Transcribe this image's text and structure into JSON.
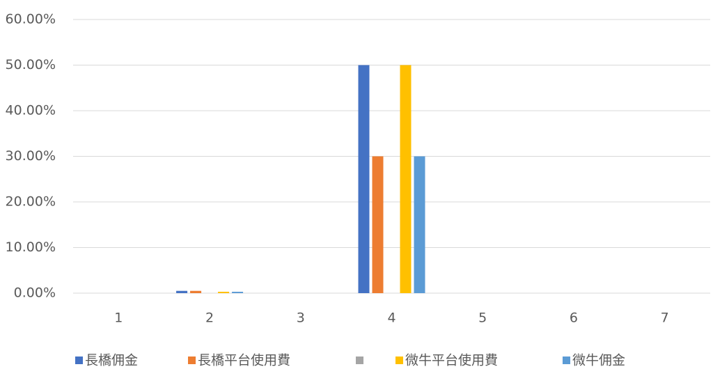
{
  "chart_data": {
    "type": "bar",
    "categories": [
      "1",
      "2",
      "3",
      "4",
      "5",
      "6",
      "7"
    ],
    "series": [
      {
        "name": "長橋佣金",
        "color": "#4472c4",
        "values": [
          0,
          0.5,
          0,
          50,
          0,
          0,
          0
        ]
      },
      {
        "name": "長橋平台使用費",
        "color": "#ed7d31",
        "values": [
          0,
          0.5,
          0,
          30,
          0,
          0,
          0
        ]
      },
      {
        "name": null,
        "color": "#a5a5a5",
        "values": [
          0,
          0,
          0,
          0,
          0,
          0,
          0
        ]
      },
      {
        "name": "微牛平台使用費",
        "color": "#ffc000",
        "values": [
          0,
          0.3,
          0,
          50,
          0,
          0,
          0
        ]
      },
      {
        "name": "微牛佣金",
        "color": "#5b9bd5",
        "values": [
          0,
          0.3,
          0,
          30,
          0,
          0,
          0
        ]
      }
    ],
    "ylim": [
      0,
      60
    ],
    "yticks": [
      {
        "value": 0,
        "label": "0.00%"
      },
      {
        "value": 10,
        "label": "10.00%"
      },
      {
        "value": 20,
        "label": "20.00%"
      },
      {
        "value": 30,
        "label": "30.00%"
      },
      {
        "value": 40,
        "label": "40.00%"
      },
      {
        "value": 50,
        "label": "50.00%"
      },
      {
        "value": 60,
        "label": "60.00%"
      }
    ],
    "grid": true,
    "legend": "bottom"
  }
}
